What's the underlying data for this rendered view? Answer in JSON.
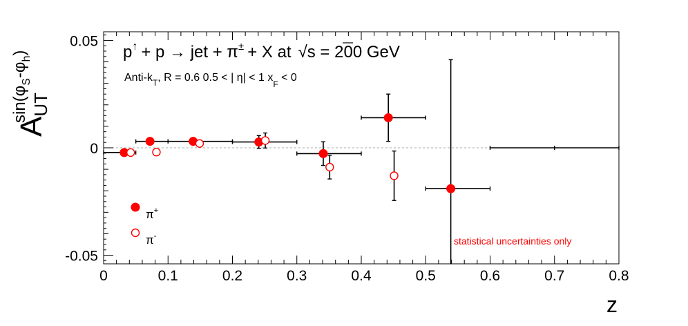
{
  "chart_data": {
    "type": "scatter",
    "title": "p↑ + p → jet + π± + X at √s = 200 GeV",
    "title_parts": {
      "p": "p",
      "arrow": "↑",
      "mid": "+ p → jet + π",
      "pm": "±",
      "after": "+ X at",
      "sqrt": "√",
      "s": "s = 200 GeV"
    },
    "subtitle_parts": {
      "antik": "Anti-k",
      "t_sub": "T",
      "rest": ", R = 0.6   0.5 < | η| < 1   x",
      "f_sub": "F",
      "lt0": " < 0"
    },
    "xlabel": "z",
    "ylabel_parts": {
      "A": "A",
      "sub": "UT",
      "sup_open": "sin(φ",
      "sup_S": "S",
      "sup_mid": "-φ",
      "sup_h": "h",
      "sup_close": ")"
    },
    "xlim": [
      0,
      0.8
    ],
    "ylim": [
      -0.054,
      0.054
    ],
    "x_ticks": [
      "0",
      "0.1",
      "0.2",
      "0.3",
      "0.4",
      "0.5",
      "0.6",
      "0.7",
      "0.8"
    ],
    "x_tick_values": [
      0,
      0.1,
      0.2,
      0.3,
      0.4,
      0.5,
      0.6,
      0.7,
      0.8
    ],
    "y_ticks": [
      "0.05",
      "0",
      "-0.05"
    ],
    "y_tick_values": [
      0.05,
      0,
      -0.05
    ],
    "zero_line": true,
    "note": "statistical uncertainties only",
    "legend": [
      {
        "symbol": "π",
        "sup": "+",
        "marker": "filled"
      },
      {
        "symbol": "π",
        "sup": "-",
        "marker": "open"
      }
    ],
    "series": [
      {
        "name": "π+",
        "marker": "filled",
        "color": "#ff0000",
        "points": [
          {
            "x": 0.032,
            "y": -0.0022,
            "xlo": 0.0,
            "xhi": 0.05,
            "yerr": 0.0012
          },
          {
            "x": 0.072,
            "y": 0.003,
            "xlo": 0.05,
            "xhi": 0.1,
            "yerr": 0.0012
          },
          {
            "x": 0.139,
            "y": 0.003,
            "xlo": 0.1,
            "xhi": 0.2,
            "yerr": 0.0012
          },
          {
            "x": 0.241,
            "y": 0.0027,
            "xlo": 0.2,
            "xhi": 0.3,
            "yerr": 0.003
          },
          {
            "x": 0.341,
            "y": -0.0027,
            "xlo": 0.3,
            "xhi": 0.4,
            "yerr": 0.0055
          },
          {
            "x": 0.442,
            "y": 0.014,
            "xlo": 0.4,
            "xhi": 0.5,
            "yerr": 0.011
          },
          {
            "x": 0.539,
            "y": -0.019,
            "xlo": 0.5,
            "xhi": 0.6,
            "yerr": 0.06
          },
          {
            "x": 0.7,
            "y": 0.0,
            "xlo": 0.6,
            "xhi": 0.8,
            "yerr": 0.0,
            "marker_hidden": true
          }
        ]
      },
      {
        "name": "π-",
        "marker": "open",
        "color": "#ff0000",
        "points": [
          {
            "x": 0.042,
            "y": -0.0022,
            "yerr": 0.0012
          },
          {
            "x": 0.082,
            "y": -0.002,
            "yerr": 0.0012
          },
          {
            "x": 0.149,
            "y": 0.002,
            "yerr": 0.0012
          },
          {
            "x": 0.251,
            "y": 0.0034,
            "yerr": 0.0035
          },
          {
            "x": 0.351,
            "y": -0.009,
            "yerr": 0.0055
          },
          {
            "x": 0.451,
            "y": -0.013,
            "yerr": 0.0115
          }
        ]
      }
    ]
  }
}
